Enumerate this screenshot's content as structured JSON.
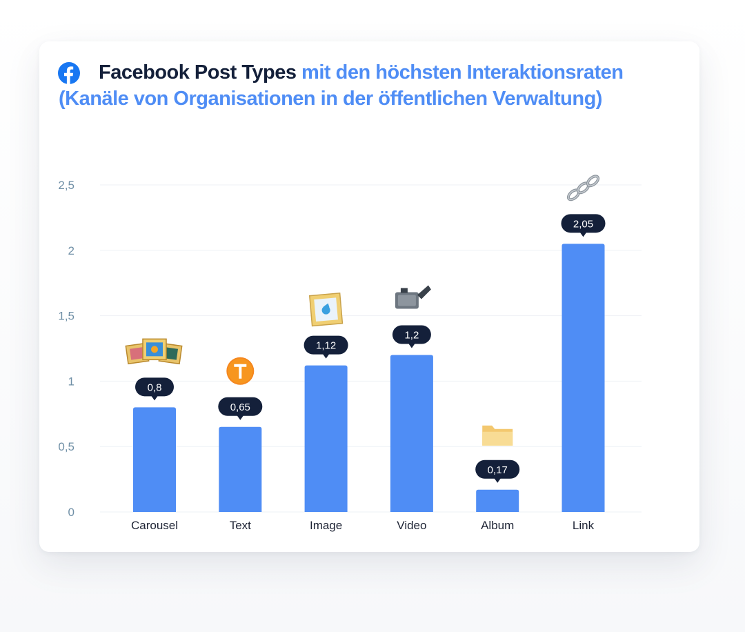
{
  "header": {
    "title_bold": "Facebook Post Types",
    "title_rest": " mit den höchsten Interaktionsraten (Kanäle von Organisationen in der öffentlichen Verwaltung)",
    "logo_icon": "facebook-icon"
  },
  "chart_data": {
    "type": "bar",
    "title": "Facebook Post Types mit den höchsten Interaktionsraten (Kanäle von Organisationen in der öffentlichen Verwaltung)",
    "categories": [
      "Carousel",
      "Text",
      "Image",
      "Video",
      "Album",
      "Link"
    ],
    "values": [
      0.8,
      0.65,
      1.12,
      1.2,
      0.17,
      2.05
    ],
    "value_labels": [
      "0,8",
      "0,65",
      "1,12",
      "1,2",
      "0,17",
      "2,05"
    ],
    "icons": [
      "framed-pictures-icon",
      "letter-t-icon",
      "framed-picture-icon",
      "video-camera-icon",
      "folder-icon",
      "chain-link-icon"
    ],
    "y_ticks": [
      0,
      0.5,
      1,
      1.5,
      2,
      2.5
    ],
    "y_tick_labels": [
      "0",
      "0,5",
      "1",
      "1,5",
      "2",
      "2,5"
    ],
    "ylim": [
      0,
      2.5
    ],
    "grid": true,
    "legend": "none",
    "bar_color": "#4f8df5",
    "label_bubble_color": "#14203a"
  }
}
